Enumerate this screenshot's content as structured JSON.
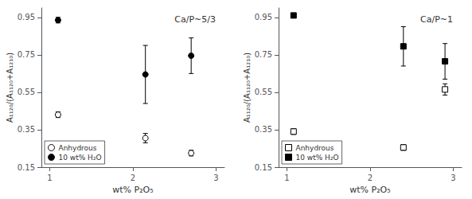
{
  "chart_data": [
    {
      "type": "scatter",
      "title": "Ca/P~5/3",
      "xlabel": "wt% P₂O₅",
      "ylabel": "A₁₁₂₀/(A₁₁₂₀+A₁₂₁₀)",
      "x": [
        1.1,
        2.15,
        2.7
      ],
      "series": [
        {
          "name": "Anhydrous",
          "color": "#ffffff",
          "marker": "circle",
          "values": [
            0.43,
            0.305,
            0.225
          ],
          "errors": [
            0.015,
            0.025,
            0.015
          ]
        },
        {
          "name": "10 wt% H₂O",
          "color": "#000000",
          "marker": "circle",
          "values": [
            0.935,
            0.645,
            0.745
          ],
          "errors": [
            0.015,
            0.155,
            0.095
          ]
        }
      ],
      "xlim": [
        0.9,
        3.1
      ],
      "ylim": [
        0.15,
        1.0
      ],
      "xticks": [
        1,
        2,
        3
      ],
      "yticks": [
        0.15,
        0.35,
        0.55,
        0.75,
        0.95
      ],
      "grid": false,
      "legend": "lower left"
    },
    {
      "type": "scatter",
      "title": "Ca/P~1",
      "xlabel": "wt% P₂O₅",
      "ylabel": "A₁₁₂₀/(A₁₁₂₀+A₁₂₁₀)",
      "x": [
        1.08,
        2.4,
        2.9
      ],
      "series": [
        {
          "name": "Anhydrous",
          "color": "#ffffff",
          "marker": "square",
          "values": [
            0.34,
            0.255,
            0.565
          ],
          "errors": [
            0.015,
            0.015,
            0.03
          ]
        },
        {
          "name": "10 wt% H₂O",
          "color": "#000000",
          "marker": "square",
          "values": [
            0.96,
            0.795,
            0.715
          ],
          "errors": [
            0.008,
            0.105,
            0.095
          ]
        }
      ],
      "xlim": [
        0.9,
        3.1
      ],
      "ylim": [
        0.15,
        1.0
      ],
      "xticks": [
        1,
        2,
        3
      ],
      "yticks": [
        0.15,
        0.35,
        0.55,
        0.75,
        0.95
      ],
      "grid": false,
      "legend": "lower left"
    }
  ]
}
